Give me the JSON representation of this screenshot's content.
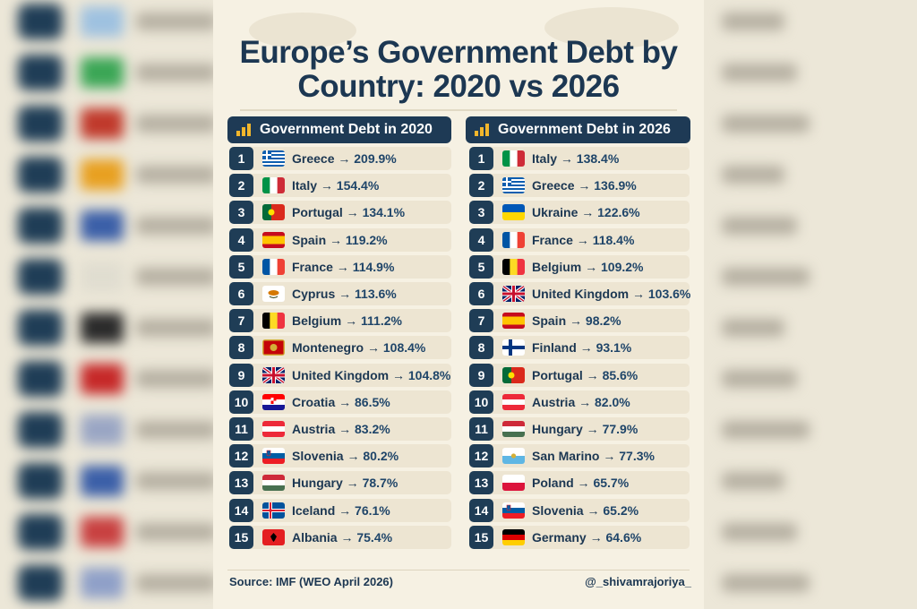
{
  "title_line1": "Europe’s Government Debt by",
  "title_line2": "Country: 2020 vs 2026",
  "column_2020": {
    "heading": "Government Debt in 2020",
    "rows": [
      {
        "rank": "1",
        "country": "Greece",
        "value": "209.9%",
        "flag": "greece"
      },
      {
        "rank": "2",
        "country": "Italy",
        "value": "154.4%",
        "flag": "italy"
      },
      {
        "rank": "3",
        "country": "Portugal",
        "value": "134.1%",
        "flag": "portugal"
      },
      {
        "rank": "4",
        "country": "Spain",
        "value": "119.2%",
        "flag": "spain"
      },
      {
        "rank": "5",
        "country": "France",
        "value": "114.9%",
        "flag": "france"
      },
      {
        "rank": "6",
        "country": "Cyprus",
        "value": "113.6%",
        "flag": "cyprus"
      },
      {
        "rank": "7",
        "country": "Belgium",
        "value": "111.2%",
        "flag": "belgium"
      },
      {
        "rank": "8",
        "country": "Montenegro",
        "value": "108.4%",
        "flag": "montenegro"
      },
      {
        "rank": "9",
        "country": "United Kingdom",
        "value": "104.8%",
        "flag": "uk"
      },
      {
        "rank": "10",
        "country": "Croatia",
        "value": "86.5%",
        "flag": "croatia"
      },
      {
        "rank": "11",
        "country": "Austria",
        "value": "83.2%",
        "flag": "austria"
      },
      {
        "rank": "12",
        "country": "Slovenia",
        "value": "80.2%",
        "flag": "slovenia"
      },
      {
        "rank": "13",
        "country": "Hungary",
        "value": "78.7%",
        "flag": "hungary"
      },
      {
        "rank": "14",
        "country": "Iceland",
        "value": "76.1%",
        "flag": "iceland"
      },
      {
        "rank": "15",
        "country": "Albania",
        "value": "75.4%",
        "flag": "albania"
      }
    ]
  },
  "column_2026": {
    "heading": "Government Debt in 2026",
    "rows": [
      {
        "rank": "1",
        "country": "Italy",
        "value": "138.4%",
        "flag": "italy"
      },
      {
        "rank": "2",
        "country": "Greece",
        "value": "136.9%",
        "flag": "greece"
      },
      {
        "rank": "3",
        "country": "Ukraine",
        "value": "122.6%",
        "flag": "ukraine"
      },
      {
        "rank": "4",
        "country": "France",
        "value": "118.4%",
        "flag": "france"
      },
      {
        "rank": "5",
        "country": "Belgium",
        "value": "109.2%",
        "flag": "belgium"
      },
      {
        "rank": "6",
        "country": "United Kingdom",
        "value": "103.6%",
        "flag": "uk"
      },
      {
        "rank": "7",
        "country": "Spain",
        "value": "98.2%",
        "flag": "spain"
      },
      {
        "rank": "8",
        "country": "Finland",
        "value": "93.1%",
        "flag": "finland"
      },
      {
        "rank": "9",
        "country": "Portugal",
        "value": "85.6%",
        "flag": "portugal"
      },
      {
        "rank": "10",
        "country": "Austria",
        "value": "82.0%",
        "flag": "austria"
      },
      {
        "rank": "11",
        "country": "Hungary",
        "value": "77.9%",
        "flag": "hungary"
      },
      {
        "rank": "12",
        "country": "San Marino",
        "value": "77.3%",
        "flag": "sanmarino"
      },
      {
        "rank": "13",
        "country": "Poland",
        "value": "65.7%",
        "flag": "poland"
      },
      {
        "rank": "14",
        "country": "Slovenia",
        "value": "65.2%",
        "flag": "slovenia"
      },
      {
        "rank": "15",
        "country": "Germany",
        "value": "64.6%",
        "flag": "germany"
      }
    ]
  },
  "arrow": "→",
  "source": "Source: IMF (WEO April 2026)",
  "handle": "@_shivamrajoriya_",
  "icons": {
    "column_heading": "bar-chart-icon"
  },
  "colors": {
    "navy": "#1e3a55",
    "card": "#f6f1e3",
    "row": "#ede5d2",
    "accent": "#f2b62c"
  }
}
